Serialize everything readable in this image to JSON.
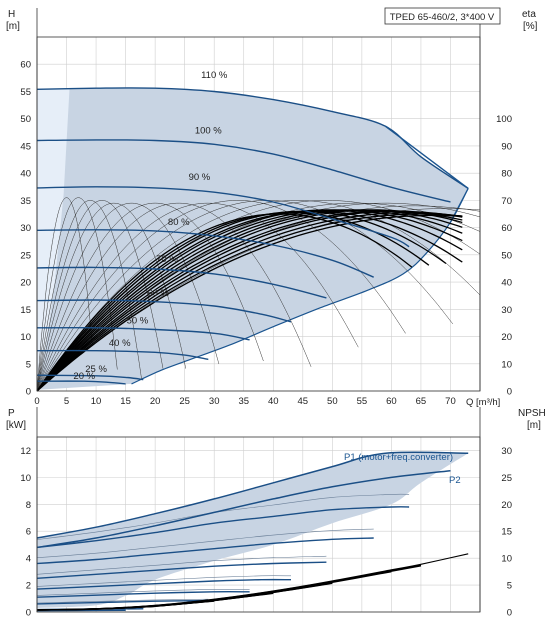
{
  "colors": {
    "envelope_fill": "#c8d4e3",
    "envelope_edge": "#1b5590",
    "speed_curve": "#1b4f86",
    "efficiency_curve": "#000000",
    "grid": "#cfcfcf",
    "frame": "#333333",
    "p1_label": "#1b5590"
  },
  "chart_data": [
    {
      "type": "line",
      "name": "qh",
      "title": "TPED 65-460/2, 3*400 V",
      "left_axis_label_top": "H",
      "left_axis_label_bottom": "[m]",
      "right_axis_label_top": "eta",
      "right_axis_label_bottom": "[%]",
      "x_label": "Q [m³/h]",
      "xlim": [
        0,
        75
      ],
      "ylim": [
        0,
        65
      ],
      "x_ticks": [
        "0",
        "5",
        "10",
        "15",
        "20",
        "25",
        "30",
        "35",
        "40",
        "45",
        "50",
        "55",
        "60",
        "65",
        "70"
      ],
      "y_ticks": [
        "0",
        "5",
        "10",
        "15",
        "20",
        "25",
        "30",
        "35",
        "40",
        "45",
        "50",
        "55",
        "60"
      ],
      "eta_ticks": [
        "0",
        "10",
        "20",
        "30",
        "40",
        "50",
        "60",
        "70",
        "80",
        "90",
        "100"
      ],
      "eta_lim": [
        0,
        130
      ],
      "grid": true,
      "speed_curves": [
        {
          "label": "110 %",
          "points": [
            [
              0,
              55.4
            ],
            [
              10,
              55.6
            ],
            [
              20,
              55.6
            ],
            [
              30,
              55
            ],
            [
              40,
              53.5
            ],
            [
              50,
              51.3
            ],
            [
              59,
              48.6
            ],
            [
              65,
              43
            ],
            [
              73,
              37.2
            ]
          ]
        },
        {
          "label": "100 %",
          "points": [
            [
              0,
              46
            ],
            [
              10,
              46.1
            ],
            [
              20,
              46
            ],
            [
              30,
              45.3
            ],
            [
              40,
              43.5
            ],
            [
              50,
              40.6
            ],
            [
              60,
              37.4
            ],
            [
              70,
              34.7
            ]
          ]
        },
        {
          "label": "90 %",
          "points": [
            [
              0,
              37.3
            ],
            [
              10,
              37.5
            ],
            [
              20,
              37.3
            ],
            [
              30,
              36.5
            ],
            [
              40,
              34.7
            ],
            [
              50,
              31.6
            ],
            [
              60,
              28.2
            ],
            [
              63,
              26.5
            ]
          ]
        },
        {
          "label": "80 %",
          "points": [
            [
              0,
              29.5
            ],
            [
              10,
              29.6
            ],
            [
              20,
              29.4
            ],
            [
              30,
              28.5
            ],
            [
              40,
              26.8
            ],
            [
              50,
              24
            ],
            [
              57,
              20.9
            ]
          ]
        },
        {
          "label": "70 %",
          "points": [
            [
              0,
              22.6
            ],
            [
              10,
              22.7
            ],
            [
              20,
              22.4
            ],
            [
              30,
              21.5
            ],
            [
              40,
              19.6
            ],
            [
              49,
              17.1
            ]
          ]
        },
        {
          "label": "60 %",
          "points": [
            [
              0,
              16.6
            ],
            [
              10,
              16.7
            ],
            [
              20,
              16.4
            ],
            [
              30,
              15.6
            ],
            [
              38,
              14.1
            ],
            [
              43,
              12.7
            ]
          ]
        },
        {
          "label": "50 %",
          "points": [
            [
              0,
              11.6
            ],
            [
              10,
              11.6
            ],
            [
              20,
              11.3
            ],
            [
              30,
              10.6
            ],
            [
              36,
              9.4
            ]
          ]
        },
        {
          "label": "40 %",
          "points": [
            [
              0,
              7.4
            ],
            [
              10,
              7.4
            ],
            [
              20,
              7.1
            ],
            [
              25,
              6.6
            ],
            [
              29,
              5.8
            ]
          ]
        },
        {
          "label": "25 %",
          "points": [
            [
              0,
              2.9
            ],
            [
              10,
              2.8
            ],
            [
              15,
              2.5
            ],
            [
              18,
              2.1
            ]
          ]
        },
        {
          "label": "20 %",
          "points": [
            [
              0,
              1.8
            ],
            [
              8,
              1.8
            ],
            [
              12,
              1.6
            ],
            [
              15,
              1.3
            ]
          ]
        }
      ],
      "envelope_curve": {
        "points": [
          [
            73,
            37.2
          ],
          [
            70,
            31
          ],
          [
            66,
            25.4
          ],
          [
            62,
            21.5
          ],
          [
            56,
            18.5
          ],
          [
            48,
            15.3
          ],
          [
            40,
            11.8
          ],
          [
            33,
            8.6
          ],
          [
            27,
            6.2
          ],
          [
            21,
            3.8
          ],
          [
            16,
            1.3
          ]
        ]
      },
      "min_curve": {
        "points": [
          [
            0,
            55.4
          ],
          [
            2,
            49
          ],
          [
            3.5,
            43
          ],
          [
            4.5,
            36
          ],
          [
            5.5,
            55.6
          ]
        ]
      },
      "efficiency_curves_eta": {
        "peak_q": [
          5,
          7,
          9,
          11,
          13,
          16,
          20,
          24,
          29,
          34,
          39,
          44,
          49,
          54,
          59,
          64,
          69
        ],
        "peak_eta": [
          71,
          71,
          70,
          70,
          69,
          69,
          69,
          69,
          69,
          70,
          70,
          70,
          70,
          69,
          69,
          68,
          67
        ],
        "bold_peak_q": [
          41,
          43,
          45,
          47,
          49,
          51,
          53,
          55,
          57,
          59,
          61,
          63,
          65,
          67
        ],
        "bold_peak_eta": [
          65,
          65.5,
          66,
          66,
          66.5,
          66.5,
          66.5,
          66.5,
          66.5,
          66,
          66,
          65.5,
          65,
          64.5
        ]
      },
      "curve_labels": [
        "110 %",
        "100 %",
        "90 %",
        "80 %",
        "70 %",
        "60 %",
        "50 %",
        "40 %",
        "25 %",
        "20 %"
      ]
    },
    {
      "type": "line",
      "name": "power",
      "left_axis_label_top": "P",
      "left_axis_label_bottom": "[kW]",
      "right_axis_label_top": "NPSH",
      "right_axis_label_bottom": "[m]",
      "xlim": [
        0,
        75
      ],
      "ylim": [
        0,
        13
      ],
      "npsh_lim": [
        0,
        32.5
      ],
      "y_ticks": [
        "0",
        "2",
        "4",
        "6",
        "8",
        "10",
        "12"
      ],
      "npsh_ticks": [
        "0",
        "5",
        "10",
        "15",
        "20",
        "25",
        "30"
      ],
      "grid": true,
      "p1_label": "P1 (motor+freq.converter)",
      "p2_label": "P2",
      "series": [
        {
          "name": "P1",
          "points": [
            [
              0,
              5.5
            ],
            [
              10,
              6.3
            ],
            [
              20,
              7.3
            ],
            [
              30,
              8.4
            ],
            [
              40,
              9.6
            ],
            [
              50,
              10.8
            ],
            [
              59,
              11.8
            ],
            [
              73,
              11.8
            ]
          ]
        },
        {
          "name": "P2",
          "points": [
            [
              0,
              4.8
            ],
            [
              10,
              5.5
            ],
            [
              20,
              6.4
            ],
            [
              30,
              7.4
            ],
            [
              40,
              8.4
            ],
            [
              50,
              9.3
            ],
            [
              60,
              10
            ],
            [
              70,
              10.5
            ]
          ]
        }
      ],
      "speed_power_curves": [
        {
          "points": [
            [
              0,
              4.8
            ],
            [
              10,
              5.3
            ],
            [
              20,
              5.9
            ],
            [
              30,
              6.6
            ],
            [
              40,
              7.1
            ],
            [
              50,
              7.6
            ],
            [
              60,
              7.8
            ],
            [
              63,
              7.8
            ]
          ]
        },
        {
          "points": [
            [
              0,
              3.6
            ],
            [
              10,
              3.9
            ],
            [
              20,
              4.3
            ],
            [
              30,
              4.7
            ],
            [
              40,
              5.1
            ],
            [
              50,
              5.4
            ],
            [
              57,
              5.5
            ]
          ]
        },
        {
          "points": [
            [
              0,
              2.5
            ],
            [
              10,
              2.8
            ],
            [
              20,
              3.1
            ],
            [
              30,
              3.4
            ],
            [
              40,
              3.6
            ],
            [
              49,
              3.7
            ]
          ]
        },
        {
          "points": [
            [
              0,
              1.7
            ],
            [
              10,
              1.9
            ],
            [
              20,
              2.1
            ],
            [
              30,
              2.3
            ],
            [
              38,
              2.4
            ],
            [
              43,
              2.4
            ]
          ]
        },
        {
          "points": [
            [
              0,
              1.1
            ],
            [
              10,
              1.25
            ],
            [
              20,
              1.4
            ],
            [
              30,
              1.5
            ],
            [
              36,
              1.5
            ]
          ]
        },
        {
          "points": [
            [
              0,
              0.6
            ],
            [
              10,
              0.7
            ],
            [
              20,
              0.8
            ],
            [
              29,
              0.85
            ]
          ]
        },
        {
          "points": [
            [
              0,
              0.18
            ],
            [
              10,
              0.22
            ],
            [
              18,
              0.24
            ]
          ]
        },
        {
          "points": [
            [
              0,
              0.1
            ],
            [
              10,
              0.12
            ],
            [
              15,
              0.13
            ]
          ]
        }
      ],
      "envelope_lower": {
        "points": [
          [
            73,
            11.8
          ],
          [
            65,
            9.6
          ],
          [
            60,
            8
          ],
          [
            50,
            6.6
          ],
          [
            40,
            5
          ],
          [
            30,
            3.8
          ],
          [
            20,
            2.4
          ],
          [
            15,
            1.2
          ],
          [
            10,
            0.5
          ],
          [
            0,
            0.3
          ]
        ]
      },
      "npsh_curves": [
        {
          "points": [
            [
              0,
              0.4
            ],
            [
              10,
              0.6
            ],
            [
              20,
              1.2
            ],
            [
              30,
              2.3
            ],
            [
              40,
              3.8
            ],
            [
              50,
              5.6
            ],
            [
              60,
              7.6
            ],
            [
              65,
              8.6
            ],
            [
              73,
              10.5
            ]
          ]
        }
      ]
    }
  ]
}
